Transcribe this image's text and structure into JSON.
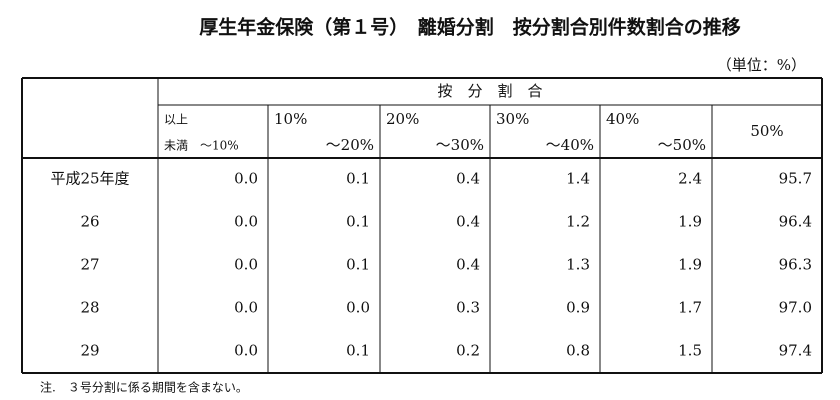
{
  "header": {
    "title": "厚生年金保険（第１号）　離婚分割　按分割合別件数割合の推移",
    "unit": "（単位：%）"
  },
  "table": {
    "group_header": "按　分　割　合",
    "first_column": {
      "top": "以上",
      "bottom": "未満　～10%"
    },
    "columns": [
      {
        "top": "10%",
        "bottom": "～20%"
      },
      {
        "top": "20%",
        "bottom": "～30%"
      },
      {
        "top": "30%",
        "bottom": "～40%"
      },
      {
        "top": "40%",
        "bottom": "～50%"
      },
      {
        "top": "50%"
      }
    ],
    "rows": [
      {
        "label": "平成25年度",
        "values": [
          "0.0",
          "0.1",
          "0.4",
          "1.4",
          "2.4",
          "95.7"
        ]
      },
      {
        "label": "26",
        "values": [
          "0.0",
          "0.1",
          "0.4",
          "1.2",
          "1.9",
          "96.4"
        ]
      },
      {
        "label": "27",
        "values": [
          "0.0",
          "0.1",
          "0.4",
          "1.3",
          "1.9",
          "96.3"
        ]
      },
      {
        "label": "28",
        "values": [
          "0.0",
          "0.0",
          "0.3",
          "0.9",
          "1.7",
          "97.0"
        ]
      },
      {
        "label": "29",
        "values": [
          "0.0",
          "0.1",
          "0.2",
          "0.8",
          "1.5",
          "97.4"
        ]
      }
    ]
  },
  "footnote": "注.　３号分割に係る期間を含まない。"
}
